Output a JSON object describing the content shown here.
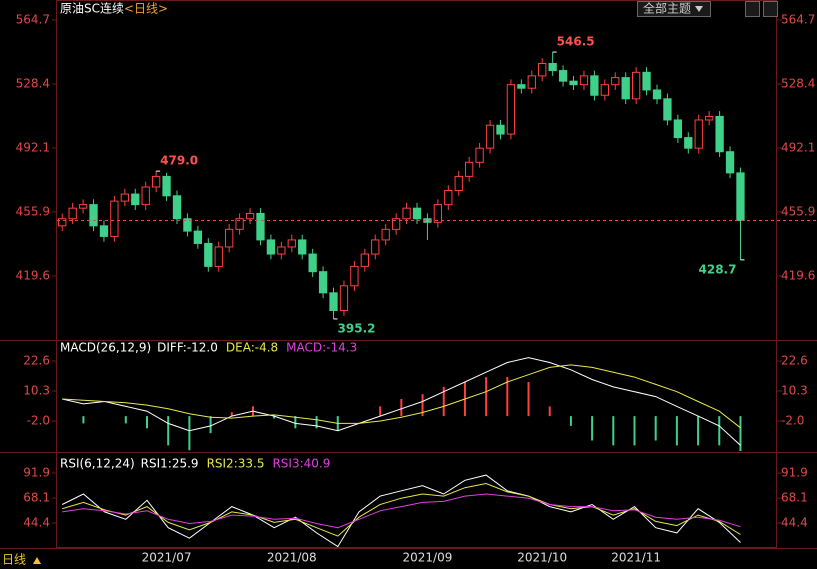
{
  "header": {
    "title": "原油SC连续",
    "period": "<日线>",
    "theme_button": "全部主题"
  },
  "footer": {
    "period": "日线"
  },
  "chart_data": [
    {
      "type": "candlestick",
      "up_color": "#ff4040",
      "down_color": "#3fd18a",
      "dashed_last": true,
      "ylim": [
        384.4,
        569.2
      ],
      "yticks": [
        419.6,
        455.9,
        492.1,
        528.4,
        564.7
      ],
      "categories": [
        null,
        null,
        null,
        null,
        null,
        null,
        null,
        null,
        null,
        null,
        "2021/07",
        null,
        null,
        null,
        null,
        null,
        null,
        null,
        null,
        null,
        null,
        null,
        "2021/08",
        null,
        null,
        null,
        null,
        null,
        null,
        null,
        null,
        null,
        null,
        null,
        null,
        "2021/09",
        null,
        null,
        null,
        null,
        null,
        null,
        null,
        null,
        null,
        null,
        "2021/10",
        null,
        null,
        null,
        null,
        null,
        null,
        null,
        null,
        "2021/11",
        null,
        null,
        null,
        null,
        null,
        null,
        null,
        null,
        null,
        null
      ],
      "opens": [
        448,
        452,
        458,
        460,
        448,
        442,
        462,
        466,
        460,
        470,
        476,
        465,
        452,
        445,
        438,
        425,
        436,
        446,
        452,
        455,
        440,
        432,
        436,
        440,
        432,
        422,
        410,
        400,
        414,
        425,
        432,
        440,
        446,
        452,
        458,
        452,
        450,
        460,
        468,
        476,
        484,
        492,
        505,
        500,
        528,
        526,
        533,
        540,
        536,
        530,
        528,
        533,
        522,
        528,
        532,
        520,
        535,
        525,
        520,
        508,
        498,
        492,
        508,
        510,
        490,
        478
      ],
      "closes": [
        452,
        458,
        460,
        448,
        442,
        462,
        466,
        460,
        470,
        476,
        465,
        452,
        445,
        438,
        425,
        436,
        446,
        452,
        455,
        440,
        432,
        436,
        440,
        432,
        422,
        410,
        400,
        414,
        425,
        432,
        440,
        446,
        452,
        458,
        452,
        450,
        460,
        468,
        476,
        484,
        492,
        505,
        500,
        528,
        526,
        533,
        540,
        536,
        530,
        528,
        533,
        522,
        528,
        532,
        520,
        535,
        525,
        520,
        508,
        498,
        492,
        508,
        510,
        490,
        478,
        451
      ],
      "highs": [
        455,
        461,
        463,
        463,
        451,
        465,
        469,
        469,
        473,
        479.0,
        478,
        468,
        455,
        448,
        441,
        439,
        449,
        455,
        458,
        458,
        443,
        439,
        443,
        443,
        435,
        425,
        413,
        417,
        428,
        435,
        443,
        449,
        455,
        461,
        461,
        455,
        463,
        471,
        479,
        487,
        495,
        508,
        508,
        531,
        531,
        536,
        543,
        546.5,
        539,
        533,
        536,
        536,
        531,
        535,
        535,
        538,
        538,
        528,
        523,
        511,
        501,
        511,
        513,
        513,
        493,
        481
      ],
      "lows": [
        445,
        449,
        455,
        445,
        439,
        439,
        459,
        457,
        457,
        467,
        462,
        449,
        442,
        435,
        422,
        422,
        433,
        443,
        449,
        437,
        429,
        429,
        433,
        429,
        419,
        407,
        395.2,
        397,
        411,
        422,
        429,
        437,
        443,
        449,
        449,
        440,
        447,
        457,
        465,
        473,
        481,
        489,
        497,
        497,
        523,
        523,
        530,
        533,
        527,
        525,
        525,
        519,
        519,
        525,
        517,
        517,
        522,
        517,
        505,
        495,
        489,
        489,
        505,
        487,
        475,
        428.7
      ],
      "annotations": [
        {
          "value": 479.0,
          "label": "479.0"
        },
        {
          "value": 546.5,
          "label": "546.5"
        },
        {
          "value": 395.2,
          "label": "395.2"
        },
        {
          "value": 428.7,
          "label": "428.7"
        }
      ]
    },
    {
      "type": "macd",
      "title": "MACD(26,12,9)",
      "ylim": [
        -13.9,
        30.4
      ],
      "yticks": [
        {
          "value": -2,
          "label": "-2.0"
        },
        10.3,
        22.6
      ],
      "series": [
        {
          "name": "DIFF:-12.0",
          "color": "#ffffff",
          "values": [
            7,
            5,
            6,
            4,
            2,
            -3,
            -6,
            -4,
            0,
            2,
            0,
            -3,
            -4,
            -6,
            -3,
            0,
            3,
            6,
            10,
            14,
            18,
            22,
            24,
            22,
            19,
            15,
            12,
            10,
            8,
            4,
            0,
            -4,
            -12.0
          ]
        },
        {
          "name": "DEA:-4.8",
          "color": "#e8e84a",
          "values": [
            7,
            6.5,
            6,
            5.5,
            4.5,
            3,
            1,
            -0.5,
            -0.8,
            0,
            0.5,
            -0.5,
            -1.5,
            -3,
            -3,
            -2,
            -0.5,
            1.5,
            4,
            7,
            10,
            14,
            17,
            20,
            21,
            20,
            18,
            16,
            13,
            10,
            6,
            2,
            -4.8
          ]
        }
      ],
      "histogram": {
        "name": "MACD:-14.3",
        "color": "#e040e0",
        "up_color": "#ff4040",
        "down_color": "#3fd18a",
        "values": [
          0,
          -3,
          0,
          -3,
          -5,
          -12,
          -14,
          -7,
          1.6,
          4,
          -1,
          -5,
          -5,
          -6,
          0,
          4,
          7,
          9,
          12,
          14,
          16,
          16,
          14,
          4,
          -4,
          -10,
          -12,
          -12,
          -10,
          -12,
          -12,
          -12,
          -14.3
        ]
      }
    },
    {
      "type": "line",
      "title": "RSI(6,12,24)",
      "ylim": [
        20.7,
        110
      ],
      "yticks": [
        44.4,
        68.1,
        91.9
      ],
      "series": [
        {
          "name": "RSI1:25.9",
          "color": "#ffffff",
          "values": [
            62,
            72,
            55,
            48,
            66,
            40,
            30,
            45,
            60,
            52,
            40,
            50,
            35,
            22,
            55,
            70,
            75,
            80,
            72,
            85,
            90,
            75,
            70,
            60,
            55,
            62,
            48,
            60,
            40,
            35,
            58,
            45,
            25.9
          ]
        },
        {
          "name": "RSI2:33.5",
          "color": "#e8e84a",
          "values": [
            58,
            64,
            57,
            52,
            60,
            45,
            38,
            45,
            55,
            52,
            45,
            48,
            40,
            32,
            50,
            62,
            68,
            72,
            70,
            78,
            82,
            74,
            70,
            62,
            58,
            60,
            52,
            58,
            46,
            42,
            52,
            46,
            33.5
          ]
        },
        {
          "name": "RSI3:40.9",
          "color": "#e040e0",
          "values": [
            55,
            58,
            56,
            53,
            56,
            48,
            44,
            46,
            52,
            51,
            48,
            49,
            44,
            40,
            48,
            56,
            60,
            64,
            65,
            70,
            72,
            70,
            68,
            62,
            60,
            60,
            56,
            57,
            50,
            48,
            50,
            47,
            40.9
          ]
        }
      ]
    }
  ]
}
